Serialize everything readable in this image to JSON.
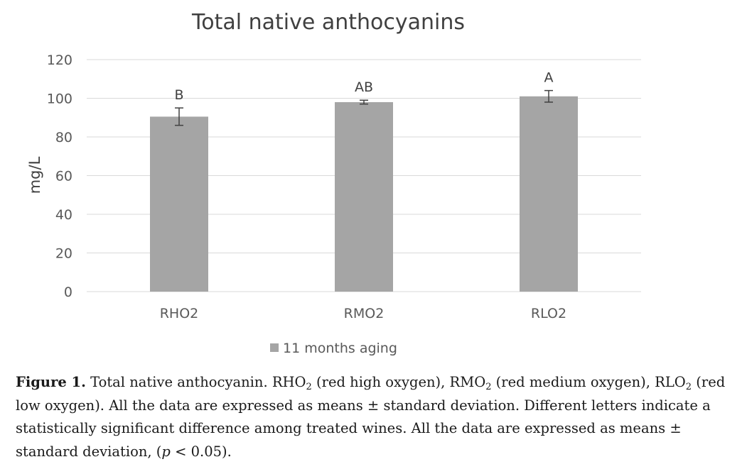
{
  "chart_data": {
    "type": "bar",
    "title": "Total native anthocyanins",
    "ylabel": "mg/L",
    "xlabel": "",
    "ylim": [
      0,
      120
    ],
    "yticks": [
      0,
      20,
      40,
      60,
      80,
      100,
      120
    ],
    "categories": [
      "RHO2",
      "RMO2",
      "RLO2"
    ],
    "series": [
      {
        "name": "11 months aging",
        "values": [
          90.5,
          98.0,
          101.0
        ],
        "errors": [
          4.5,
          1.0,
          3.0
        ],
        "color": "#a5a5a5"
      }
    ],
    "annotations": [
      "B",
      "AB",
      "A"
    ],
    "grid": true,
    "legend_position": "bottom"
  },
  "caption": {
    "label": "Figure 1.",
    "text_1": " Total native anthocyanin. RHO",
    "sub_1": "2",
    "text_2": " (red high oxygen), RMO",
    "sub_2": "2",
    "text_3": " (red medium oxygen), RLO",
    "sub_3": "2",
    "text_4": " (red low oxygen). All the data are expressed as means ± standard deviation. Different letters indicate a statistically significant difference among treated wines. All the data are expressed as means ± standard deviation, (",
    "p_symbol": "p",
    "text_5": " < 0.05)."
  }
}
